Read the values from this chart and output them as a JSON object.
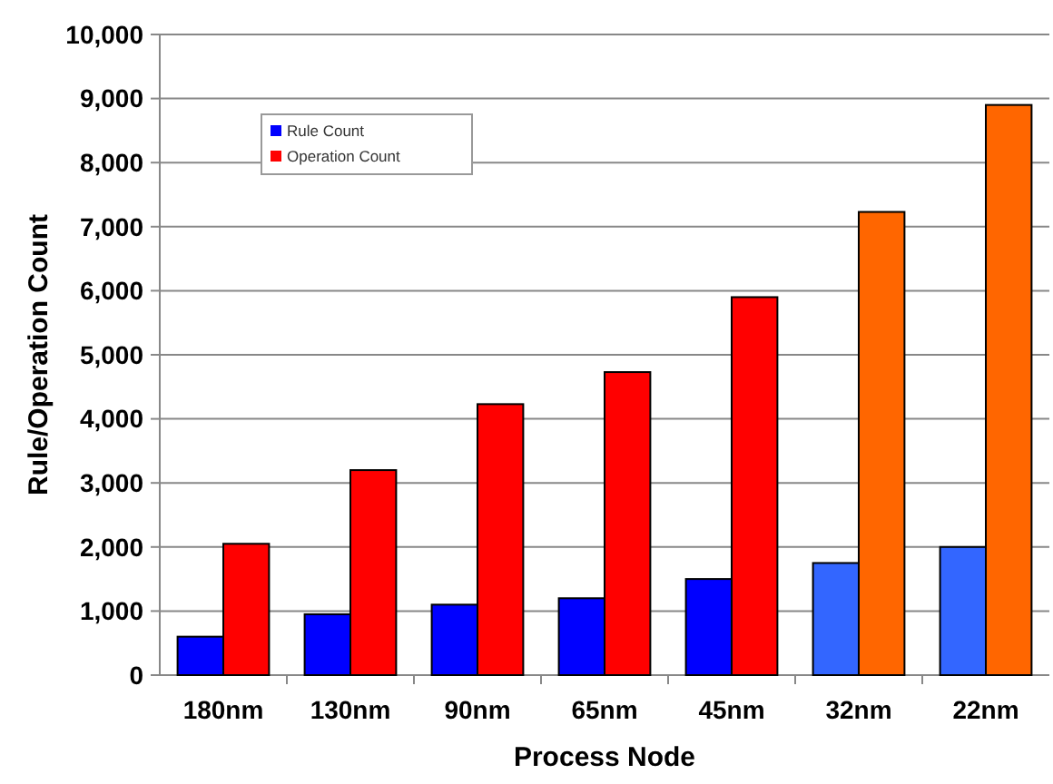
{
  "chart_data": {
    "type": "bar",
    "xlabel": "Process Node",
    "ylabel": "Rule/Operation Count",
    "categories": [
      "180nm",
      "130nm",
      "90nm",
      "65nm",
      "45nm",
      "32nm",
      "22nm"
    ],
    "series": [
      {
        "name": "Rule Count",
        "color": "#0000ff",
        "colors": [
          "#0000ff",
          "#0000ff",
          "#0000ff",
          "#0000ff",
          "#0000ff",
          "#3366ff",
          "#3366ff"
        ],
        "values": [
          600,
          950,
          1100,
          1200,
          1500,
          1750,
          2000
        ]
      },
      {
        "name": "Operation Count",
        "color": "#ff0000",
        "colors": [
          "#ff0000",
          "#ff0000",
          "#ff0000",
          "#ff0000",
          "#ff0000",
          "#ff6600",
          "#ff6600"
        ],
        "values": [
          2050,
          3200,
          4230,
          4730,
          5900,
          7230,
          8900
        ]
      }
    ],
    "ylim": [
      0,
      10000
    ],
    "yticks": [
      {
        "value": 0,
        "label": "0"
      },
      {
        "value": 1000,
        "label": "1,000"
      },
      {
        "value": 2000,
        "label": "2,000"
      },
      {
        "value": 3000,
        "label": "3,000"
      },
      {
        "value": 4000,
        "label": "4,000"
      },
      {
        "value": 5000,
        "label": "5,000"
      },
      {
        "value": 6000,
        "label": "6,000"
      },
      {
        "value": 7000,
        "label": "7,000"
      },
      {
        "value": 8000,
        "label": "8,000"
      },
      {
        "value": 9000,
        "label": "9,000"
      },
      {
        "value": 10000,
        "label": "10,000"
      }
    ],
    "grid": "y",
    "legend": "top left"
  }
}
